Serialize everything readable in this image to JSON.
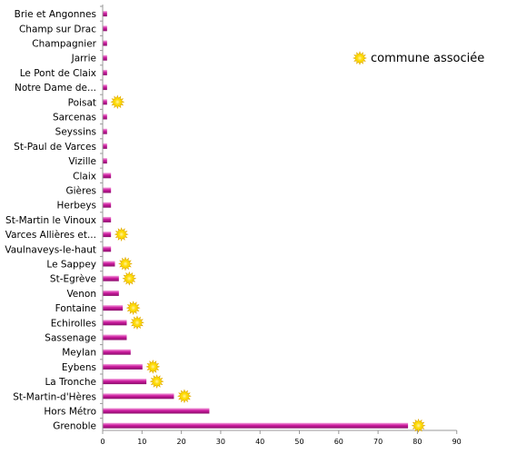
{
  "chart_data": {
    "type": "bar",
    "orientation": "horizontal",
    "categories": [
      "Grenoble",
      "Hors Métro",
      "St-Martin-d'Hères",
      "La Tronche",
      "Eybens",
      "Meylan",
      "Sassenage",
      "Echirolles",
      "Fontaine",
      "Venon",
      "St-Egrève",
      "Le Sappey",
      "Vaulnaveys-le-haut",
      "Varces Allières et...",
      "St-Martin le Vinoux",
      "Herbeys",
      "Gières",
      "Claix",
      "Vizille",
      "St-Paul de Varces",
      "Seyssins",
      "Sarcenas",
      "Poisat",
      "Notre Dame de...",
      "Le Pont de Claix",
      "Jarrie",
      "Champagnier",
      "Champ sur Drac",
      "Brie et Angonnes"
    ],
    "values": [
      77.5,
      27,
      18,
      11,
      10,
      7,
      6,
      6,
      5,
      4,
      4,
      3,
      2,
      2,
      2,
      2,
      2,
      2,
      1,
      1,
      1,
      1,
      1,
      1,
      1,
      1,
      1,
      1,
      1
    ],
    "commune_associee": [
      true,
      false,
      true,
      true,
      true,
      false,
      false,
      true,
      true,
      false,
      true,
      true,
      false,
      true,
      false,
      false,
      false,
      false,
      false,
      false,
      false,
      false,
      true,
      false,
      false,
      false,
      false,
      false,
      false
    ],
    "x_ticks": [
      "0",
      "10",
      "20",
      "30",
      "40",
      "50",
      "60",
      "70",
      "80",
      "90"
    ],
    "xlim": [
      0,
      90
    ],
    "legend": {
      "label": "commune associée",
      "placement": "top-right"
    },
    "colors": {
      "bar": "#cc1a9e",
      "bar_highlight": "#f5a6e0",
      "marker": "#ffe000",
      "axis": "#999999",
      "text": "#000000"
    }
  }
}
